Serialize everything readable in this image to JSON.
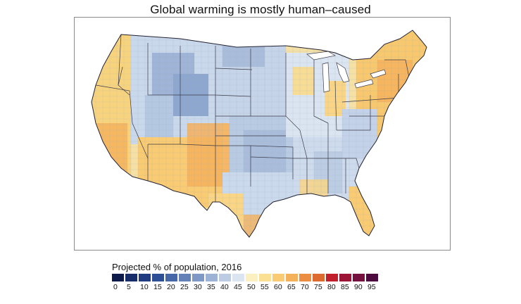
{
  "title": "Global warming is mostly human–caused",
  "legend": {
    "title": "Projected % of population, 2016",
    "bins": [
      {
        "label": "0",
        "color": "#0d1a4a"
      },
      {
        "label": "5",
        "color": "#172d6a"
      },
      {
        "label": "10",
        "color": "#1f3c82"
      },
      {
        "label": "15",
        "color": "#2d4f96"
      },
      {
        "label": "20",
        "color": "#4668a8"
      },
      {
        "label": "25",
        "color": "#6482b8"
      },
      {
        "label": "30",
        "color": "#7f99c6"
      },
      {
        "label": "35",
        "color": "#9db3d5"
      },
      {
        "label": "40",
        "color": "#bccde3"
      },
      {
        "label": "45",
        "color": "#dbe5f1"
      },
      {
        "label": "50",
        "color": "#fbf0c0"
      },
      {
        "label": "55",
        "color": "#fbe094"
      },
      {
        "label": "60",
        "color": "#f9cb72"
      },
      {
        "label": "65",
        "color": "#f5b05a"
      },
      {
        "label": "70",
        "color": "#ec8e42"
      },
      {
        "label": "75",
        "color": "#dd6a2e"
      },
      {
        "label": "80",
        "color": "#c21f2c"
      },
      {
        "label": "85",
        "color": "#9c1536"
      },
      {
        "label": "90",
        "color": "#76103e"
      },
      {
        "label": "95",
        "color": "#4c0a3e"
      }
    ]
  }
}
